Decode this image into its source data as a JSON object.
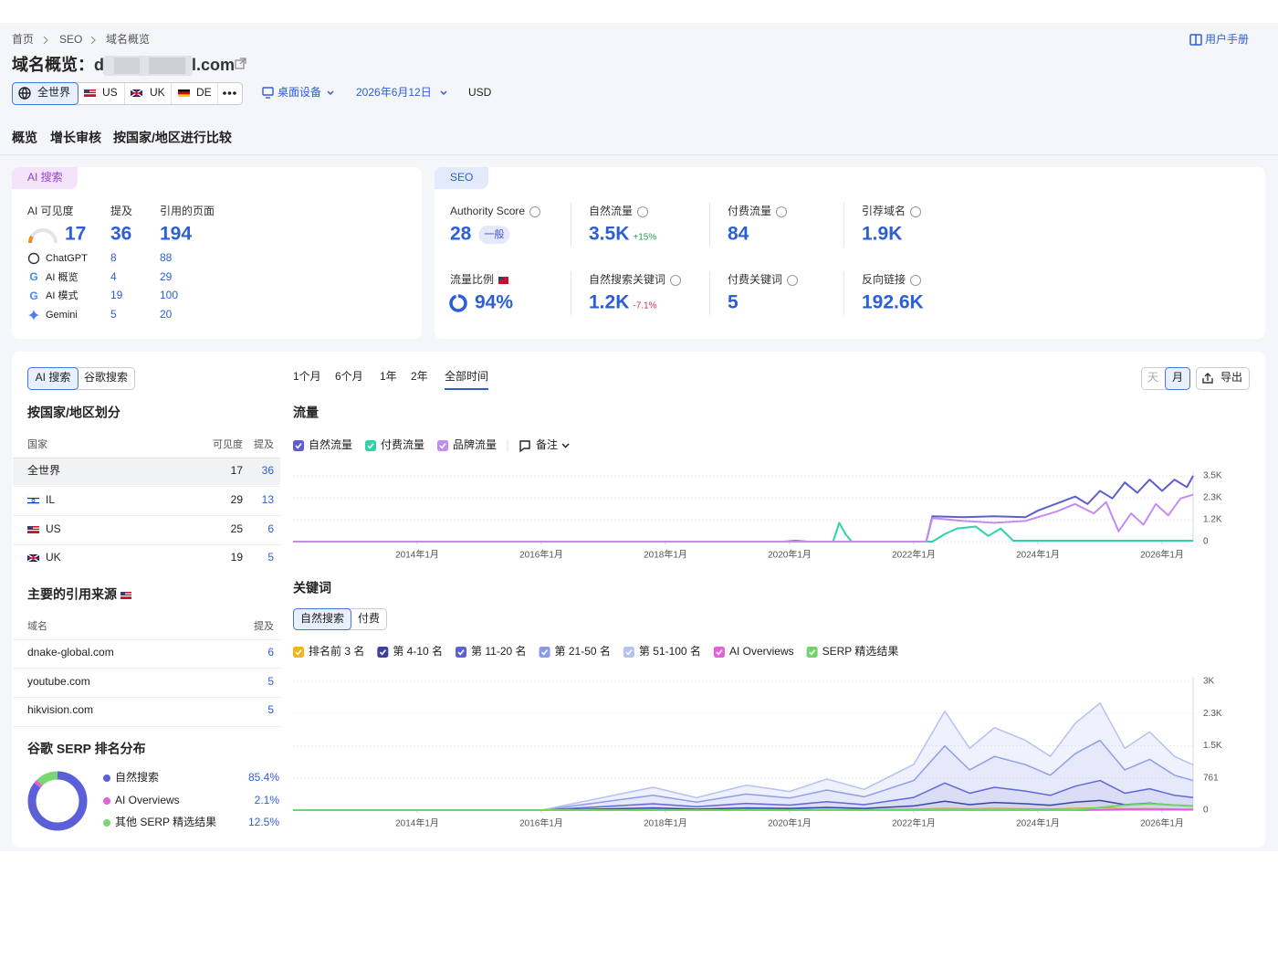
{
  "header": {
    "breadcrumb": [
      "首页",
      "SEO",
      "域名概览"
    ],
    "manual": "用户手册",
    "title": "域名概览：",
    "domain_start": "d",
    "domain_end": "l.com",
    "regions": [
      "全世界",
      "US",
      "UK",
      "DE"
    ],
    "device": "桌面设备",
    "date": "2026年6月12日",
    "currency": "USD",
    "tabs": [
      "概览",
      "增长审核",
      "按国家/地区进行比较"
    ]
  },
  "ai_card": {
    "tag": "AI 搜索",
    "headers": [
      "AI 可见度",
      "提及",
      "引用的页面"
    ],
    "visibility": 17,
    "mentions": 36,
    "cited_pages": 194,
    "rows": [
      [
        "ChatGPT",
        8,
        88
      ],
      [
        "AI 概览",
        4,
        29
      ],
      [
        "AI 模式",
        19,
        100
      ],
      [
        "Gemini",
        5,
        20
      ]
    ]
  },
  "seo_card": {
    "tag": "SEO",
    "metrics": [
      {
        "label": "Authority Score",
        "value": 28,
        "badge": "一般"
      },
      {
        "label": "自然流量",
        "value": "3.5K",
        "change": "+15%"
      },
      {
        "label": "付费流量",
        "value": 84
      },
      {
        "label": "引荐域名",
        "value": "1.9K"
      },
      {
        "label": "流量比例",
        "value": 94,
        "value_label": "94%"
      },
      {
        "label": "自然搜索关键词",
        "value": "1.2K",
        "change": "-7.1%"
      },
      {
        "label": "付费关键词",
        "value": 5
      },
      {
        "label": "反向链接",
        "value": "192.6K"
      }
    ]
  },
  "left": {
    "source_tabs": [
      "AI 搜索",
      "谷歌搜索"
    ],
    "country_title": "按国家/地区划分",
    "country_headers": [
      "国家",
      "可见度",
      "提及"
    ],
    "countries": [
      [
        "全世界",
        17,
        36
      ],
      [
        "IL",
        29,
        13
      ],
      [
        "US",
        25,
        6
      ],
      [
        "UK",
        19,
        5
      ]
    ],
    "sources_title": "主要的引用来源",
    "source_headers": [
      "域名",
      "提及"
    ],
    "sources": [
      [
        "dnake-global.com",
        6
      ],
      [
        "youtube.com",
        5
      ],
      [
        "hikvision.com",
        5
      ]
    ],
    "serp_title": "谷歌 SERP 排名分布",
    "serp": [
      {
        "name": "自然搜索",
        "value": 85.4,
        "value_label": "85.4%",
        "color": "#5b60d8"
      },
      {
        "name": "AI Overviews",
        "value": 2.1,
        "value_label": "2.1%",
        "color": "#e361d6"
      },
      {
        "name": "其他 SERP 精选结果",
        "value": 12.5,
        "value_label": "12.5%",
        "color": "#79d672"
      }
    ]
  },
  "right": {
    "ranges": [
      "1个月",
      "6个月",
      "1年",
      "2年",
      "全部时间"
    ],
    "active_range": 4,
    "granularity": [
      "天",
      "月"
    ],
    "active_granularity": 1,
    "export": "导出",
    "keyword_tabs": [
      "自然搜索",
      "付费"
    ],
    "traffic": {
      "type": "line",
      "title": "流量",
      "notes": "备注",
      "xlim": [
        2012,
        2026.5
      ],
      "xticks": [
        {
          "value": 2014,
          "label": "2014年1月"
        },
        {
          "value": 2016,
          "label": "2016年1月"
        },
        {
          "value": 2018,
          "label": "2018年1月"
        },
        {
          "value": 2020,
          "label": "2020年1月"
        },
        {
          "value": 2022,
          "label": "2022年1月"
        },
        {
          "value": 2024,
          "label": "2024年1月"
        },
        {
          "value": 2026,
          "label": "2026年1月"
        }
      ],
      "ylim": [
        0,
        3500
      ],
      "yticks": [
        0,
        {
          "value": 1167,
          "label": "1.2K"
        },
        {
          "value": 2333,
          "label": "2.3K"
        },
        {
          "value": 3500,
          "label": "3.5K"
        }
      ],
      "grid": true,
      "series": [
        {
          "name": "自然流量",
          "color": "#5d5fcf",
          "x": [
            2012,
            2019.9,
            2020.1,
            2020.3,
            2022.2,
            2022.3,
            2022.8,
            2023.3,
            2023.8,
            2024.0,
            2024.2,
            2024.4,
            2024.6,
            2024.8,
            2025.0,
            2025.2,
            2025.4,
            2025.6,
            2025.8,
            2026.0,
            2026.2,
            2026.4,
            2026.5
          ],
          "values": [
            0,
            0,
            40,
            0,
            0,
            1350,
            1300,
            1350,
            1300,
            1650,
            1900,
            2150,
            2400,
            2000,
            2700,
            2300,
            3150,
            2600,
            3300,
            2700,
            3300,
            2900,
            3500
          ]
        },
        {
          "name": "付费流量",
          "color": "#2ed3a8",
          "x": [
            2012,
            2020.7,
            2020.8,
            2020.9,
            2021.0,
            2022.3,
            2022.5,
            2022.7,
            2023.0,
            2023.2,
            2023.4,
            2023.6,
            2026.5
          ],
          "values": [
            0,
            0,
            1000,
            400,
            0,
            0,
            400,
            700,
            800,
            300,
            700,
            50,
            50
          ]
        },
        {
          "name": "品牌流量",
          "color": "#c48cf0",
          "x": [
            2012,
            2022.2,
            2022.3,
            2022.8,
            2023.3,
            2023.8,
            2024.0,
            2024.3,
            2024.6,
            2024.9,
            2025.1,
            2025.3,
            2025.5,
            2025.7,
            2025.9,
            2026.1,
            2026.3,
            2026.5
          ],
          "values": [
            0,
            0,
            1250,
            1100,
            1000,
            1100,
            1300,
            1600,
            2000,
            1500,
            2100,
            550,
            1500,
            900,
            2000,
            1400,
            2300,
            2500
          ]
        }
      ]
    },
    "keywords": {
      "type": "area",
      "title": "关键词",
      "xlim": [
        2012,
        2026.5
      ],
      "xticks": [
        {
          "value": 2014,
          "label": "2014年1月"
        },
        {
          "value": 2016,
          "label": "2016年1月"
        },
        {
          "value": 2018,
          "label": "2018年1月"
        },
        {
          "value": 2020,
          "label": "2020年1月"
        },
        {
          "value": 2022,
          "label": "2022年1月"
        },
        {
          "value": 2024,
          "label": "2024年1月"
        },
        {
          "value": 2026,
          "label": "2026年1月"
        }
      ],
      "ylim": [
        0,
        3044
      ],
      "yticks": [
        0,
        761,
        {
          "value": 1522,
          "label": "1.5K"
        },
        {
          "value": 2283,
          "label": "2.3K"
        },
        {
          "value": 3044,
          "label": "3K"
        }
      ],
      "grid": true,
      "x": [
        2012,
        2016,
        2017.8,
        2018.5,
        2019.3,
        2020.0,
        2020.6,
        2021.2,
        2022.0,
        2022.5,
        2022.9,
        2023.3,
        2023.8,
        2024.2,
        2024.6,
        2025.0,
        2025.4,
        2025.8,
        2026.2,
        2026.5
      ],
      "series": [
        {
          "name": "排名前 3 名",
          "color": "#f2b418",
          "type": "area",
          "values": [
            0,
            0,
            10,
            5,
            10,
            10,
            15,
            10,
            20,
            40,
            30,
            40,
            30,
            25,
            40,
            50,
            30,
            35,
            25,
            20
          ]
        },
        {
          "name": "第 4-10 名",
          "color": "#3f3f9f",
          "type": "area",
          "values": [
            0,
            0,
            40,
            20,
            40,
            30,
            50,
            30,
            80,
            170,
            100,
            140,
            120,
            90,
            150,
            180,
            100,
            130,
            90,
            80
          ]
        },
        {
          "name": "第 11-20 名",
          "color": "#5b62d9",
          "type": "area",
          "values": [
            0,
            0,
            100,
            55,
            110,
            80,
            135,
            90,
            200,
            430,
            270,
            360,
            300,
            235,
            375,
            470,
            270,
            340,
            235,
            200
          ]
        },
        {
          "name": "第 21-50 名",
          "color": "#8b9ae9",
          "type": "area",
          "values": [
            0,
            0,
            200,
            110,
            220,
            165,
            275,
            185,
            400,
            880,
            550,
            730,
            625,
            475,
            770,
            950,
            550,
            695,
            475,
            400
          ]
        },
        {
          "name": "第 51-100 名",
          "color": "#b5c1f3",
          "type": "area",
          "values": [
            0,
            0,
            190,
            105,
            210,
            155,
            260,
            175,
            380,
            820,
            510,
            680,
            575,
            445,
            715,
            880,
            510,
            650,
            445,
            370
          ]
        },
        {
          "name": "AI Overviews",
          "color": "#e361d6",
          "type": "line",
          "values": [
            0,
            0,
            0,
            0,
            0,
            0,
            0,
            0,
            0,
            0,
            0,
            0,
            0,
            0,
            0,
            5,
            10,
            10,
            10,
            10
          ]
        },
        {
          "name": "SERP 精选结果",
          "color": "#6fd46a",
          "type": "line",
          "values": [
            0,
            0,
            0,
            0,
            0,
            0,
            0,
            0,
            0,
            0,
            0,
            0,
            0,
            0,
            0,
            60,
            120,
            150,
            120,
            100
          ]
        }
      ]
    }
  }
}
